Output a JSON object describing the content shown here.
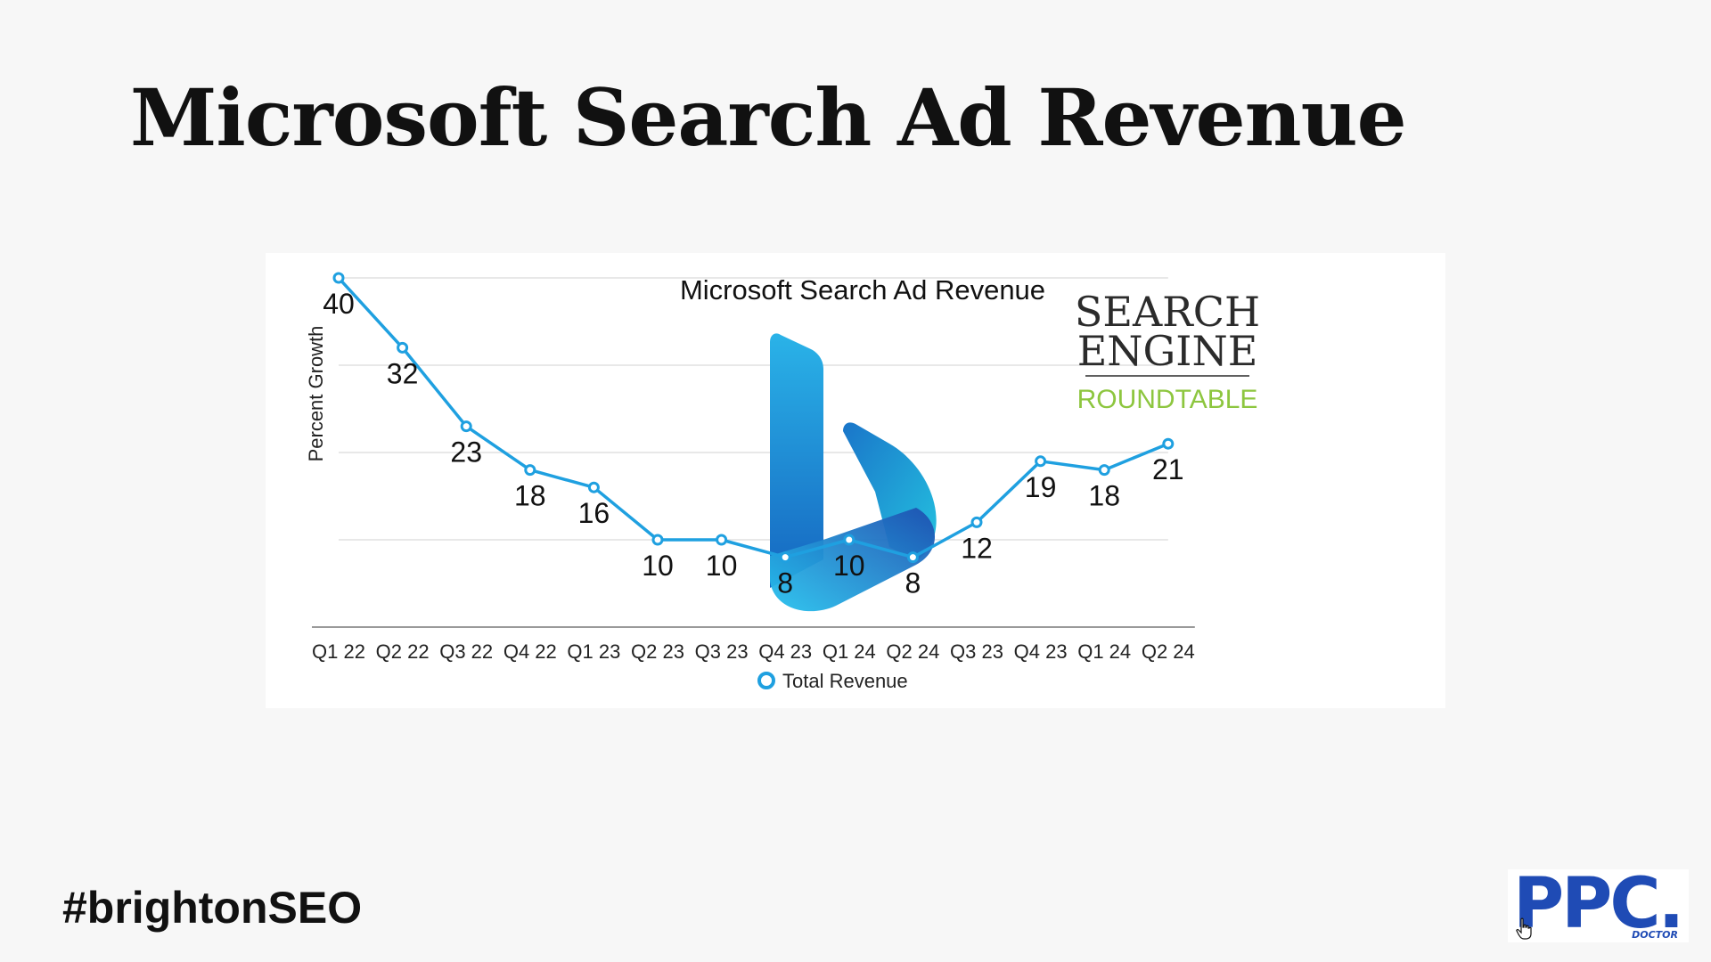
{
  "slide": {
    "title": "Microsoft Search Ad Revenue",
    "hashtag": "#brightonSEO"
  },
  "watermark": {
    "line1": "SEARCH",
    "line2": "ENGINE",
    "line3": "ROUNDTABLE",
    "line3_color": "#8dc63f"
  },
  "logo": {
    "text": "PPC.",
    "subtext": "DOCTOR",
    "color": "#1f4bb5"
  },
  "center_icon": "bing-logo-icon",
  "chart_data": {
    "type": "line",
    "title": "Microsoft Search Ad Revenue",
    "ylabel": "Percent Growth",
    "xlabel": "",
    "categories": [
      "Q1 22",
      "Q2 22",
      "Q3 22",
      "Q4 22",
      "Q1 23",
      "Q2 23",
      "Q3 23",
      "Q4 23",
      "Q1 24",
      "Q2 24",
      "Q3 23",
      "Q4 23",
      "Q1 24",
      "Q2 24"
    ],
    "series": [
      {
        "name": "Total Revenue",
        "values": [
          40,
          32,
          23,
          18,
          16,
          10,
          10,
          8,
          10,
          8,
          12,
          19,
          18,
          21
        ],
        "color": "#1fa0e0"
      }
    ],
    "ylim": [
      0,
      40
    ],
    "grid": true,
    "legend": "bottom-center",
    "data_labels": true
  }
}
